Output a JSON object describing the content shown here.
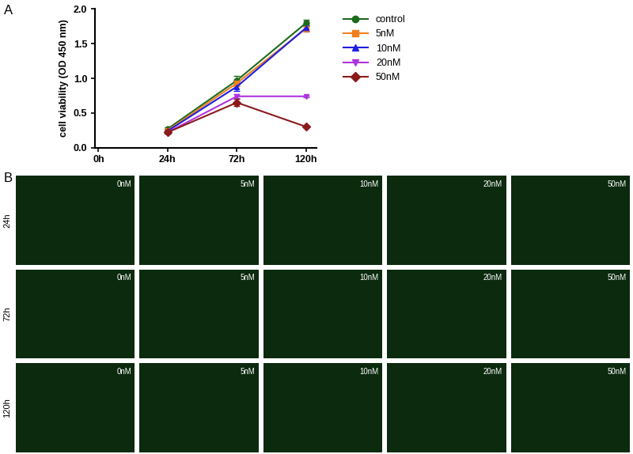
{
  "panel_labels": [
    "A",
    "B"
  ],
  "chart_data": {
    "type": "line",
    "y_label": "cell viability (OD 450 nm)",
    "categories": [
      "0h",
      "24h",
      "72h",
      "120h"
    ],
    "ylim": [
      0,
      2
    ],
    "yticks": [
      {
        "value": 0,
        "label": "0.0"
      },
      {
        "value": 0.5,
        "label": "0.5"
      },
      {
        "value": 1,
        "label": "1.0"
      },
      {
        "value": 1.5,
        "label": "1.5"
      },
      {
        "value": 2,
        "label": "2.0"
      }
    ],
    "legend": "right",
    "series": [
      {
        "name": "control",
        "color": "#1b6b1b",
        "marker": "circle",
        "values": [
          null,
          0.27,
          0.97,
          1.8
        ],
        "errors": [
          null,
          0.02,
          0.06,
          0.05
        ]
      },
      {
        "name": "5nM",
        "color": "#f07f1e",
        "marker": "square",
        "values": [
          null,
          0.25,
          0.93,
          1.72
        ],
        "errors": [
          null,
          0.02,
          0.04,
          0.05
        ]
      },
      {
        "name": "10nM",
        "color": "#1f1fe0",
        "marker": "triangle_up",
        "values": [
          null,
          0.24,
          0.88,
          1.73
        ],
        "errors": [
          null,
          0.02,
          0.06,
          0.04
        ]
      },
      {
        "name": "20nM",
        "color": "#b033e0",
        "marker": "triangle_down",
        "values": [
          null,
          0.22,
          0.74,
          0.74
        ],
        "errors": [
          null,
          0.02,
          0.03,
          0.01
        ]
      },
      {
        "name": "50nM",
        "color": "#8b1a1a",
        "marker": "diamond",
        "values": [
          null,
          0.22,
          0.65,
          0.3
        ],
        "errors": [
          null,
          0.02,
          0.05,
          0.01
        ]
      }
    ]
  },
  "image_grid": {
    "row_labels": [
      "24h",
      "72h",
      "120h"
    ],
    "columns": [
      "0nM",
      "5nM",
      "10nM",
      "20nM",
      "50nM"
    ]
  }
}
